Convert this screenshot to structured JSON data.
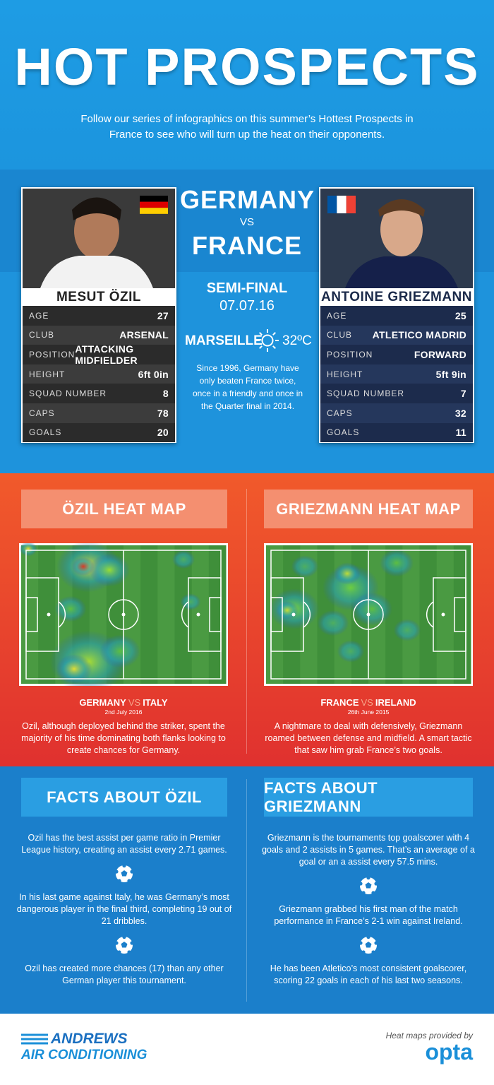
{
  "header": {
    "title": "HOT PROSPECTS",
    "subtitle": "Follow our series of infographics on this summer’s Hottest Prospects in France to see who will turn up the heat on their opponents."
  },
  "match": {
    "team1": "GERMANY",
    "vs": "VS",
    "team2": "FRANCE",
    "stage": "SEMI-FINAL",
    "date": "07.07.16",
    "venue": "MARSEILLE",
    "temperature": "32ºC",
    "note": "Since 1996, Germany have only beaten France twice, once in a friendly and once in the Quarter final in 2014."
  },
  "players": [
    {
      "name": "MESUT ÖZIL",
      "rows": [
        [
          "AGE",
          "27"
        ],
        [
          "CLUB",
          "ARSENAL"
        ],
        [
          "POSITION",
          "ATTACKING MIDFIELDER"
        ],
        [
          "HEIGHT",
          "6ft 0in"
        ],
        [
          "SQUAD NUMBER",
          "8"
        ],
        [
          "CAPS",
          "78"
        ],
        [
          "GOALS",
          "20"
        ]
      ]
    },
    {
      "name": "ANTOINE GRIEZMANN",
      "rows": [
        [
          "AGE",
          "25"
        ],
        [
          "CLUB",
          "ATLETICO MADRID"
        ],
        [
          "POSITION",
          "FORWARD"
        ],
        [
          "HEIGHT",
          "5ft 9in"
        ],
        [
          "SQUAD NUMBER",
          "7"
        ],
        [
          "CAPS",
          "32"
        ],
        [
          "GOALS",
          "11"
        ]
      ]
    }
  ],
  "heat_maps": [
    {
      "title": "ÖZIL HEAT MAP",
      "team": "GERMANY",
      "vs": "VS",
      "opponent": "ITALY",
      "date": "2nd July 2016",
      "description": "Ozil, although deployed behind the striker, spent the majority of his time dominating both flanks looking to create chances for Germany."
    },
    {
      "title": "GRIEZMANN HEAT MAP",
      "team": "FRANCE",
      "vs": "VS",
      "opponent": "IRELAND",
      "date": "26th June 2015",
      "description": "A nightmare to deal with defensively, Griezmann roamed between defense and midfield. A smart tactic that saw him grab France’s two goals."
    }
  ],
  "facts": [
    {
      "title": "FACTS ABOUT ÖZIL",
      "items": [
        "Ozil has the best assist per game ratio in Premier League history, creating an assist every 2.71 games.",
        "In his last game against Italy, he was Germany’s most dangerous player in the final third, completing 19 out of 21 dribbles.",
        "Ozil has created more chances (17) than any other German player this tournament."
      ]
    },
    {
      "title": "FACTS ABOUT GRIEZMANN",
      "items": [
        "Griezmann is the tournaments top goalscorer with 4 goals and 2 assists in 5 games. That’s an average of a goal or an a assist every 57.5 mins.",
        "Griezmann grabbed his first man of the match performance in France’s 2-1 win against Ireland.",
        "He has been Atletico’s most consistent goalscorer, scoring 22 goals in each of his last two seasons."
      ]
    }
  ],
  "footer": {
    "brand_line1": "ANDREWS",
    "brand_line2": "AIR CONDITIONING",
    "credit": "Heat maps provided by",
    "provider": "opta"
  }
}
